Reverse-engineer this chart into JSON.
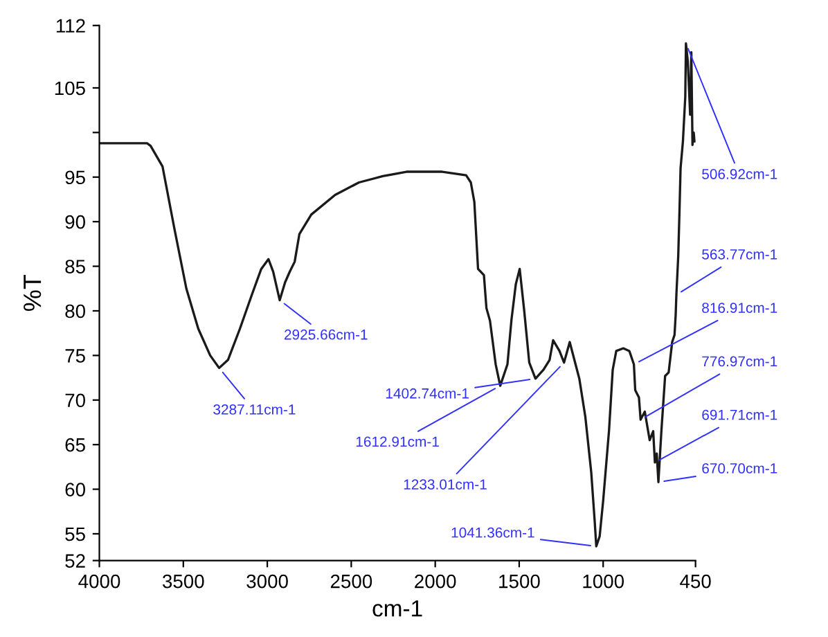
{
  "chart_data": {
    "type": "line",
    "xlabel": "cm-1",
    "ylabel": "%T",
    "xlim": [
      4000,
      450
    ],
    "xticks": [
      4000,
      3500,
      3000,
      2500,
      2000,
      1500,
      1000,
      450
    ],
    "ylim": [
      52,
      112
    ],
    "yticks": [
      52,
      55,
      60,
      65,
      70,
      75,
      80,
      85,
      90,
      95,
      {
        "value": 100,
        "label": null
      },
      105,
      112
    ],
    "grid": false,
    "legend": false,
    "marker": "none",
    "line_style": "solid",
    "series": [
      {
        "color": "#1a1a1a",
        "x": [
          4000,
          3716,
          3695,
          3624,
          3553,
          3482,
          3411,
          3340,
          3287,
          3234,
          3163,
          3092,
          3036,
          2993,
          2965,
          2926,
          2894,
          2866,
          2837,
          2809,
          2738,
          2596,
          2454,
          2312,
          2171,
          1958,
          1816,
          1788,
          1767,
          1745,
          1710,
          1695,
          1674,
          1640,
          1613,
          1570,
          1546,
          1520,
          1497,
          1470,
          1440,
          1403,
          1355,
          1319,
          1298,
          1260,
          1233,
          1199,
          1163,
          1142,
          1106,
          1071,
          1050,
          1041,
          1021,
          1000,
          965,
          943,
          922,
          880,
          844,
          817,
          809,
          787,
          777,
          752,
          723,
          702,
          692,
          681,
          671,
          653,
          631,
          610,
          589,
          575,
          568,
          564,
          553,
          546,
          539,
          525,
          511,
          507,
          496,
          482,
          475,
          468,
          461,
          455
        ],
        "values": [
          98.8,
          98.8,
          98.5,
          96.2,
          89.2,
          82.5,
          78,
          75,
          73.6,
          74.5,
          78,
          81.8,
          84.7,
          85.8,
          84.4,
          81.2,
          83.2,
          84.4,
          85.5,
          88.6,
          90.8,
          93,
          94.4,
          95.1,
          95.6,
          95.6,
          95.2,
          94.4,
          92.2,
          84.7,
          84.0,
          80.3,
          78.9,
          74,
          71.6,
          74,
          79,
          83,
          84.7,
          80,
          74.2,
          72.4,
          73.4,
          74.5,
          76.7,
          75.5,
          74.2,
          76.5,
          73.9,
          72.4,
          68.1,
          61.9,
          56.3,
          53.6,
          54.7,
          58.7,
          66.6,
          73.4,
          75.5,
          75.8,
          75.5,
          74.0,
          71.1,
          70.3,
          67.8,
          68.7,
          65.5,
          66.5,
          63.0,
          64,
          60.8,
          66.6,
          72.7,
          73.1,
          76.5,
          77.3,
          79.6,
          81.8,
          86.1,
          90.8,
          96,
          99,
          104,
          110,
          108,
          102,
          109,
          98.6,
          100,
          99
        ]
      }
    ],
    "annotations": [
      {
        "text": "3287.11cm-1",
        "x": 3287,
        "y": 73.6
      },
      {
        "text": "2925.66cm-1",
        "x": 2926,
        "y": 81.2
      },
      {
        "text": "1612.91cm-1",
        "x": 1613,
        "y": 71.6
      },
      {
        "text": "1402.74cm-1",
        "x": 1403,
        "y": 72.4
      },
      {
        "text": "1233.01cm-1",
        "x": 1233,
        "y": 74.2
      },
      {
        "text": "1041.36cm-1",
        "x": 1041,
        "y": 53.6
      },
      {
        "text": "816.91cm-1",
        "x": 817,
        "y": 74.0
      },
      {
        "text": "776.97cm-1",
        "x": 777,
        "y": 67.8
      },
      {
        "text": "691.71cm-1",
        "x": 692,
        "y": 63.0
      },
      {
        "text": "670.70cm-1",
        "x": 671,
        "y": 60.8
      },
      {
        "text": "563.77cm-1",
        "x": 564,
        "y": 81.8
      },
      {
        "text": "506.92cm-1",
        "x": 507,
        "y": 110
      }
    ]
  }
}
